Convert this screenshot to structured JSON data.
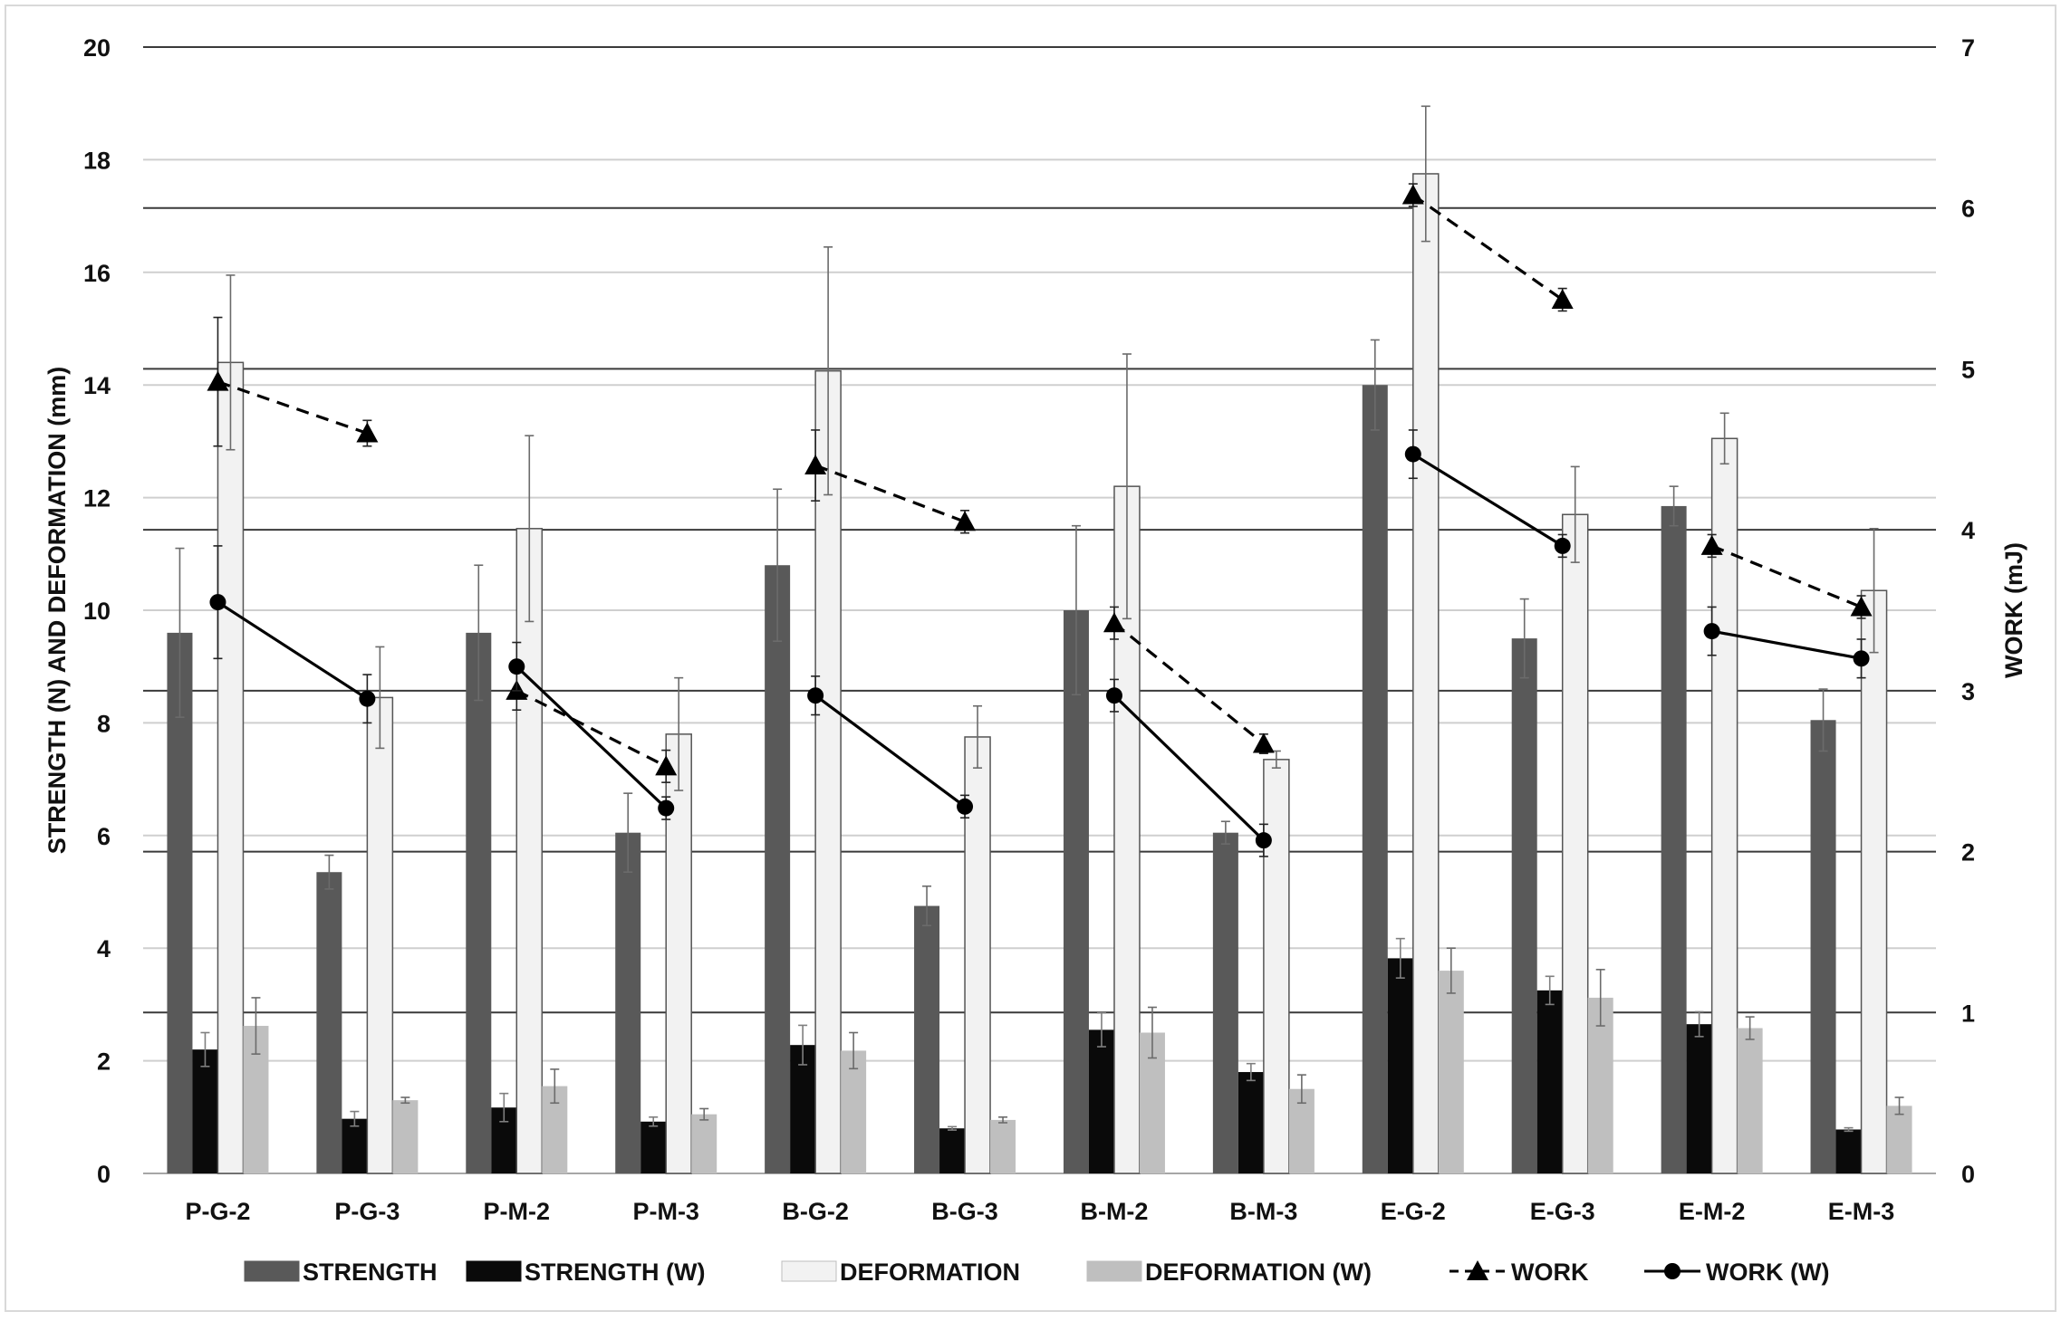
{
  "chart_data": {
    "type": "bar",
    "categories": [
      "P-G-2",
      "P-G-3",
      "P-M-2",
      "P-M-3",
      "B-G-2",
      "B-G-3",
      "B-M-2",
      "B-M-3",
      "E-G-2",
      "E-G-3",
      "E-M-2",
      "E-M-3"
    ],
    "ylabel": "STRENGTH (N) AND DEFORMATION (mm)",
    "y2label": "WORK (mJ)",
    "ylim": [
      0,
      20
    ],
    "y2lim": [
      0,
      7
    ],
    "yticks": [
      "0",
      "2",
      "4",
      "6",
      "8",
      "10",
      "12",
      "14",
      "16",
      "18",
      "20"
    ],
    "y2ticks": [
      "0",
      "1",
      "2",
      "3",
      "4",
      "5",
      "6",
      "7"
    ],
    "grid": true,
    "legend_position": "bottom",
    "series": [
      {
        "name": "STRENGTH",
        "kind": "bar",
        "axis": "left",
        "color": "#595959",
        "values": [
          9.6,
          5.35,
          9.6,
          6.05,
          10.8,
          4.75,
          10.0,
          6.05,
          14.0,
          9.5,
          11.85,
          8.05
        ],
        "errors": [
          1.5,
          0.3,
          1.2,
          0.7,
          1.35,
          0.35,
          1.5,
          0.2,
          0.8,
          0.7,
          0.35,
          0.55
        ]
      },
      {
        "name": "STRENGTH (W)",
        "kind": "bar",
        "axis": "left",
        "color": "#0a0a0a",
        "values": [
          2.2,
          0.97,
          1.17,
          0.92,
          2.28,
          0.8,
          2.55,
          1.8,
          3.82,
          3.25,
          2.65,
          0.78
        ],
        "errors": [
          0.3,
          0.13,
          0.25,
          0.08,
          0.35,
          0.03,
          0.3,
          0.15,
          0.35,
          0.25,
          0.22,
          0.03
        ]
      },
      {
        "name": "DEFORMATION",
        "kind": "bar",
        "axis": "left",
        "color": "#f2f2f2",
        "values": [
          14.4,
          8.45,
          11.45,
          7.8,
          14.25,
          7.75,
          12.2,
          7.35,
          17.75,
          11.7,
          13.05,
          10.35
        ],
        "errors": [
          1.55,
          0.9,
          1.65,
          1.0,
          2.2,
          0.55,
          2.35,
          0.15,
          1.2,
          0.85,
          0.45,
          1.1
        ]
      },
      {
        "name": "DEFORMATION (W)",
        "kind": "bar",
        "axis": "left",
        "color": "#bfbfbf",
        "values": [
          2.62,
          1.3,
          1.55,
          1.05,
          2.18,
          0.95,
          2.5,
          1.5,
          3.6,
          3.12,
          2.58,
          1.2
        ],
        "errors": [
          0.5,
          0.05,
          0.3,
          0.1,
          0.32,
          0.05,
          0.45,
          0.25,
          0.4,
          0.5,
          0.2,
          0.15
        ]
      },
      {
        "name": "WORK",
        "kind": "line",
        "axis": "right",
        "marker": "triangle",
        "dash": "dashed",
        "color": "#000000",
        "values": [
          4.92,
          4.6,
          3.0,
          2.53,
          4.4,
          4.05,
          3.42,
          2.67,
          6.08,
          5.43,
          3.9,
          3.52
        ],
        "errors": [
          0.4,
          0.08,
          0.12,
          0.1,
          0.22,
          0.07,
          0.1,
          0.06,
          0.07,
          0.07,
          0.07,
          0.07
        ]
      },
      {
        "name": "WORK (W)",
        "kind": "line",
        "axis": "right",
        "marker": "circle",
        "dash": "solid",
        "color": "#000000",
        "values": [
          3.55,
          2.95,
          3.15,
          2.27,
          2.97,
          2.28,
          2.97,
          2.07,
          4.47,
          3.9,
          3.37,
          3.2
        ],
        "errors": [
          0.35,
          0.15,
          0.15,
          0.07,
          0.12,
          0.07,
          0.1,
          0.1,
          0.15,
          0.07,
          0.15,
          0.12
        ]
      }
    ],
    "connect_pairs": [
      [
        0,
        1
      ],
      [
        2,
        3
      ],
      [
        4,
        5
      ],
      [
        6,
        7
      ],
      [
        8,
        9
      ],
      [
        10,
        11
      ]
    ]
  }
}
